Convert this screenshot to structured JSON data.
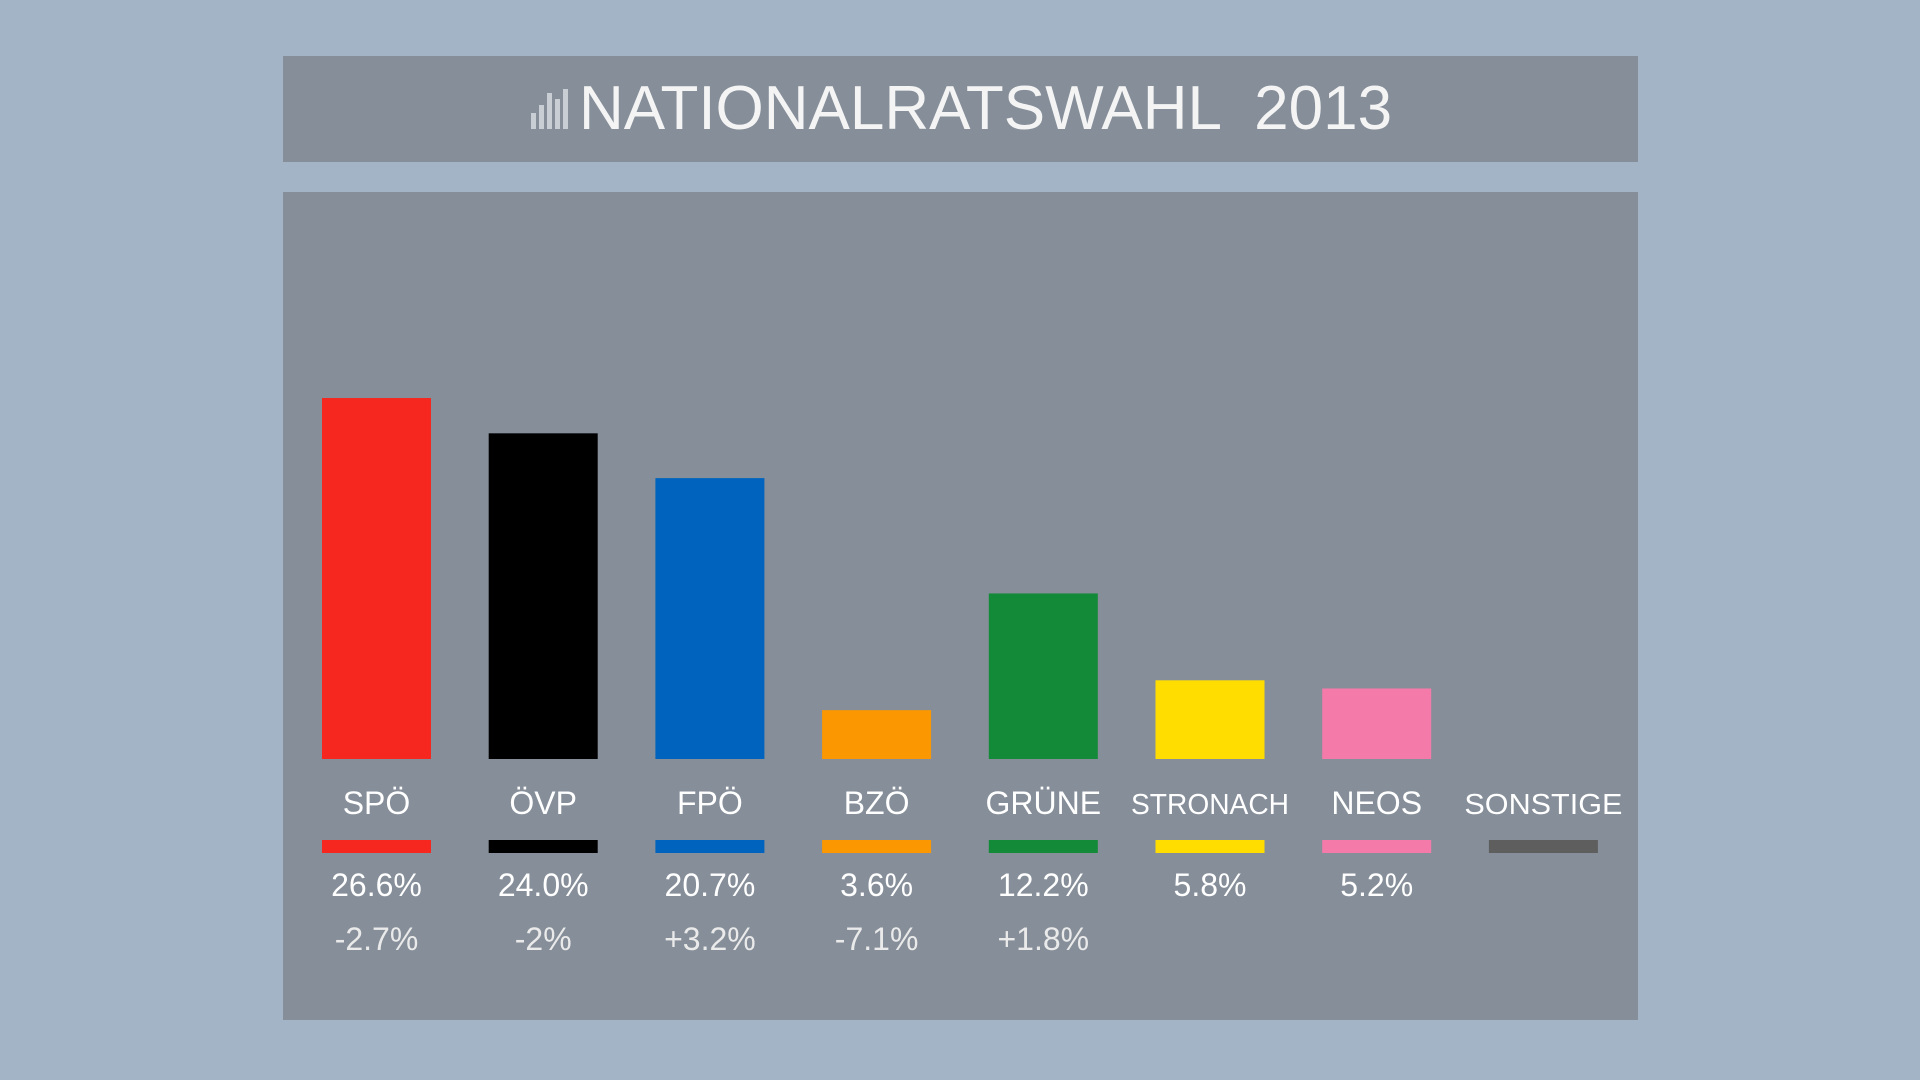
{
  "header": {
    "title": "NATIONALRATSWAHL  2013"
  },
  "colors": {
    "background": "#a2b4c5",
    "panel": "#858e99",
    "text": "#ffffff",
    "change_text": "#eaeaea"
  },
  "chart_data": {
    "type": "bar",
    "title": "NATIONALRATSWAHL  2013",
    "categories": [
      "SPÖ",
      "ÖVP",
      "FPÖ",
      "BZÖ",
      "GRÜNE",
      "STRONACH",
      "NEOS",
      "SONSTIGE"
    ],
    "values": [
      26.6,
      24.0,
      20.7,
      3.6,
      12.2,
      5.8,
      5.2,
      null
    ],
    "value_labels": [
      "26.6%",
      "24.0%",
      "20.7%",
      "3.6%",
      "12.2%",
      "5.8%",
      "5.2%",
      ""
    ],
    "change_labels": [
      "-2.7%",
      "-2%",
      "+3.2%",
      "-7.1%",
      "+1.8%",
      "",
      "",
      ""
    ],
    "colors": [
      "#f5271f",
      "#000000",
      "#0064be",
      "#fb9700",
      "#138a38",
      "#ffdd00",
      "#f37aa9",
      "#5e5e5e"
    ],
    "grid": false,
    "legend": "none"
  }
}
